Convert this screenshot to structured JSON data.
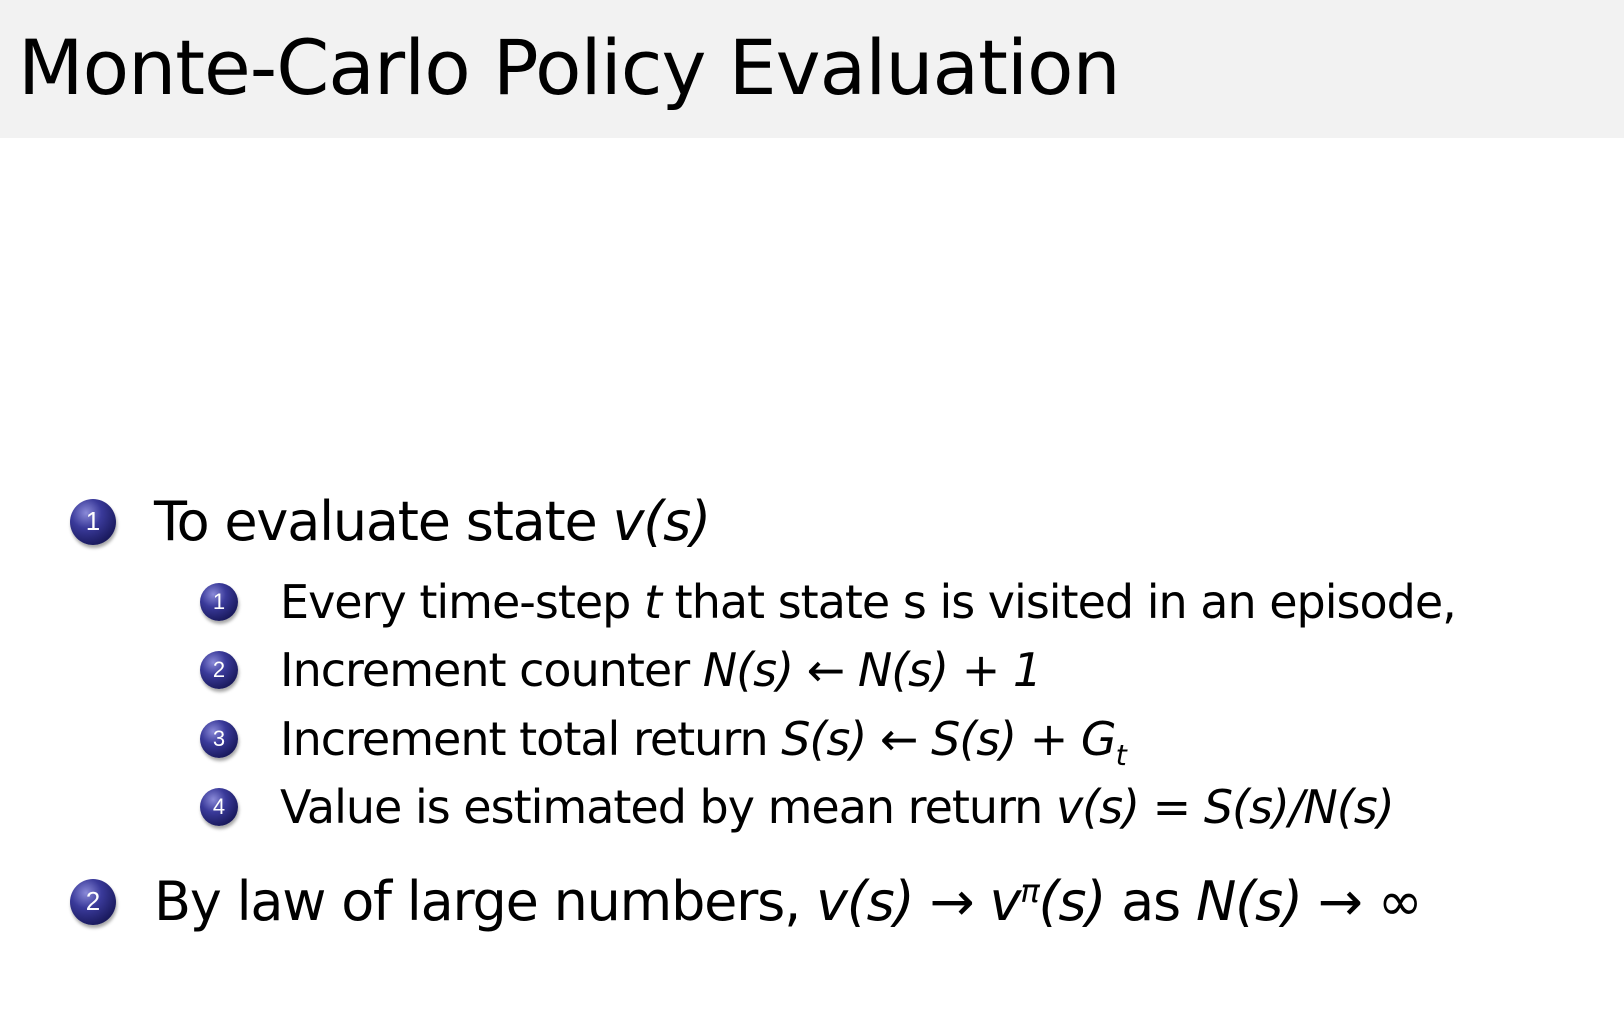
{
  "slide": {
    "title": "Monte-Carlo Policy Evaluation",
    "bullet_color": "#2a2a80",
    "items": [
      {
        "number": "1",
        "segments": [
          {
            "text": "To evaluate state ",
            "style": "text"
          },
          {
            "text": "v(s)",
            "style": "math"
          }
        ],
        "subitems": [
          {
            "number": "1",
            "segments": [
              {
                "text": "Every time-step ",
                "style": "text"
              },
              {
                "text": "t",
                "style": "math"
              },
              {
                "text": " that state s is visited in an episode,",
                "style": "text"
              }
            ]
          },
          {
            "number": "2",
            "segments": [
              {
                "text": "Increment counter ",
                "style": "text"
              },
              {
                "text": "N(s) ← N(s) + 1",
                "style": "math"
              }
            ]
          },
          {
            "number": "3",
            "segments": [
              {
                "text": "Increment total return ",
                "style": "text"
              },
              {
                "text": "S(s) ← S(s) + G",
                "style": "math"
              },
              {
                "text": "t",
                "style": "sub"
              }
            ]
          },
          {
            "number": "4",
            "segments": [
              {
                "text": "Value is estimated by mean return ",
                "style": "text"
              },
              {
                "text": "v(s) = S(s)/N(s)",
                "style": "math"
              }
            ]
          }
        ]
      },
      {
        "number": "2",
        "segments": [
          {
            "text": "By law of large numbers, ",
            "style": "text"
          },
          {
            "text": "v(s) → v",
            "style": "math"
          },
          {
            "text": "π",
            "style": "sup"
          },
          {
            "text": "(s)",
            "style": "math"
          },
          {
            "text": " as ",
            "style": "text"
          },
          {
            "text": "N(s) → ∞",
            "style": "math"
          }
        ],
        "subitems": []
      }
    ]
  }
}
